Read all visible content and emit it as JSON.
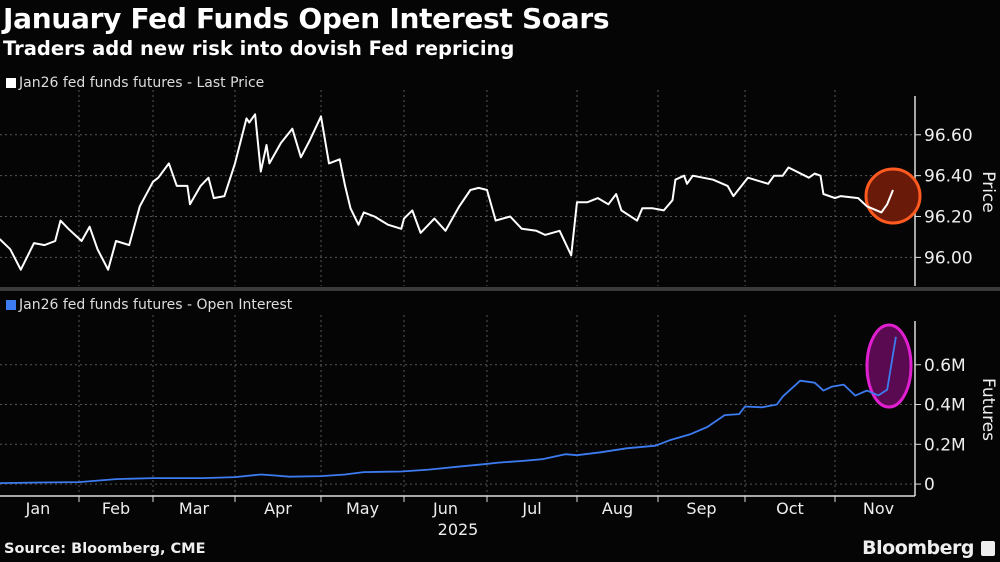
{
  "title": "January Fed Funds Open Interest Soars",
  "subtitle": "Traders add new risk into dovish Fed repricing",
  "source": "Source: Bloomberg, CME",
  "logo": "Bloomberg",
  "chart_data": [
    {
      "type": "line",
      "legend": "Jan26 fed funds futures - Last Price",
      "ylabel": "Price",
      "ylim": [
        95.86,
        96.78
      ],
      "yticks": [
        "96.00",
        "96.20",
        "96.40",
        "96.60"
      ],
      "grid": true,
      "color": "#ffffff",
      "highlight": {
        "shape": "circle",
        "color": "#ff5a1f",
        "around": "2025-11 final points"
      },
      "series": [
        {
          "name": "Jan26 fed funds futures - Last Price",
          "points": [
            [
              "2025-01-02",
              96.09
            ],
            [
              "2025-01-06",
              96.04
            ],
            [
              "2025-01-10",
              95.94
            ],
            [
              "2025-01-15",
              96.07
            ],
            [
              "2025-01-19",
              96.06
            ],
            [
              "2025-01-23",
              96.08
            ],
            [
              "2025-01-25",
              96.18
            ],
            [
              "2025-01-28",
              96.14
            ],
            [
              "2025-02-02",
              96.08
            ],
            [
              "2025-02-05",
              96.15
            ],
            [
              "2025-02-08",
              96.04
            ],
            [
              "2025-02-12",
              95.94
            ],
            [
              "2025-02-15",
              96.08
            ],
            [
              "2025-02-20",
              96.06
            ],
            [
              "2025-02-24",
              96.25
            ],
            [
              "2025-03-01",
              96.37
            ],
            [
              "2025-03-03",
              96.39
            ],
            [
              "2025-03-07",
              96.46
            ],
            [
              "2025-03-10",
              96.35
            ],
            [
              "2025-03-14",
              96.35
            ],
            [
              "2025-03-15",
              96.26
            ],
            [
              "2025-03-19",
              96.35
            ],
            [
              "2025-03-22",
              96.39
            ],
            [
              "2025-03-24",
              96.29
            ],
            [
              "2025-03-28",
              96.3
            ],
            [
              "2025-04-01",
              96.46
            ],
            [
              "2025-04-05",
              96.68
            ],
            [
              "2025-04-06",
              96.66
            ],
            [
              "2025-04-08",
              96.7
            ],
            [
              "2025-04-10",
              96.42
            ],
            [
              "2025-04-12",
              96.55
            ],
            [
              "2025-04-13",
              96.46
            ],
            [
              "2025-04-17",
              96.56
            ],
            [
              "2025-04-21",
              96.63
            ],
            [
              "2025-04-24",
              96.49
            ],
            [
              "2025-04-27",
              96.57
            ],
            [
              "2025-05-01",
              96.69
            ],
            [
              "2025-05-04",
              96.46
            ],
            [
              "2025-05-08",
              96.48
            ],
            [
              "2025-05-10",
              96.35
            ],
            [
              "2025-05-12",
              96.24
            ],
            [
              "2025-05-15",
              96.16
            ],
            [
              "2025-05-17",
              96.22
            ],
            [
              "2025-05-21",
              96.2
            ],
            [
              "2025-05-26",
              96.16
            ],
            [
              "2025-05-31",
              96.14
            ],
            [
              "2025-06-01",
              96.19
            ],
            [
              "2025-06-04",
              96.23
            ],
            [
              "2025-06-07",
              96.12
            ],
            [
              "2025-06-12",
              96.19
            ],
            [
              "2025-06-16",
              96.13
            ],
            [
              "2025-06-21",
              96.25
            ],
            [
              "2025-06-25",
              96.33
            ],
            [
              "2025-06-28",
              96.34
            ],
            [
              "2025-07-01",
              96.33
            ],
            [
              "2025-07-04",
              96.18
            ],
            [
              "2025-07-09",
              96.2
            ],
            [
              "2025-07-13",
              96.14
            ],
            [
              "2025-07-18",
              96.13
            ],
            [
              "2025-07-21",
              96.11
            ],
            [
              "2025-07-26",
              96.13
            ],
            [
              "2025-07-30",
              96.01
            ],
            [
              "2025-08-01",
              96.27
            ],
            [
              "2025-08-05",
              96.27
            ],
            [
              "2025-08-09",
              96.29
            ],
            [
              "2025-08-13",
              96.26
            ],
            [
              "2025-08-16",
              96.31
            ],
            [
              "2025-08-18",
              96.23
            ],
            [
              "2025-08-24",
              96.18
            ],
            [
              "2025-08-26",
              96.24
            ],
            [
              "2025-08-30",
              96.24
            ],
            [
              "2025-09-03",
              96.23
            ],
            [
              "2025-09-06",
              96.28
            ],
            [
              "2025-09-07",
              96.38
            ],
            [
              "2025-09-10",
              96.4
            ],
            [
              "2025-09-11",
              96.36
            ],
            [
              "2025-09-13",
              96.4
            ],
            [
              "2025-09-20",
              96.38
            ],
            [
              "2025-09-25",
              96.35
            ],
            [
              "2025-09-27",
              96.3
            ],
            [
              "2025-10-02",
              96.39
            ],
            [
              "2025-10-09",
              96.36
            ],
            [
              "2025-10-11",
              96.4
            ],
            [
              "2025-10-14",
              96.4
            ],
            [
              "2025-10-16",
              96.44
            ],
            [
              "2025-10-23",
              96.39
            ],
            [
              "2025-10-25",
              96.41
            ],
            [
              "2025-10-27",
              96.4
            ],
            [
              "2025-10-28",
              96.31
            ],
            [
              "2025-11-01",
              96.29
            ],
            [
              "2025-11-03",
              96.3
            ],
            [
              "2025-11-09",
              96.29
            ],
            [
              "2025-11-12",
              96.25
            ],
            [
              "2025-11-17",
              96.22
            ],
            [
              "2025-11-19",
              96.26
            ],
            [
              "2025-11-21",
              96.33
            ]
          ]
        }
      ]
    },
    {
      "type": "line",
      "legend": "Jan26 fed funds futures - Open Interest",
      "ylabel": "Futures",
      "ylim": [
        -0.06,
        0.81
      ],
      "yunit": "M",
      "yticks": [
        "0",
        "0.2M",
        "0.4M",
        "0.6M"
      ],
      "ytick_values": [
        0,
        0.2,
        0.4,
        0.6
      ],
      "grid": true,
      "color": "#3d7bf0",
      "highlight": {
        "shape": "ellipse",
        "color": "#e020d0",
        "around": "2025-11 final points"
      },
      "xticks": [
        "Jan",
        "Feb",
        "Mar",
        "Apr",
        "May",
        "Jun",
        "Jul",
        "Aug",
        "Sep",
        "Oct",
        "Nov"
      ],
      "xyear": "2025",
      "series": [
        {
          "name": "Jan26 fed funds futures - Open Interest",
          "points": [
            [
              "2025-01-02",
              0.005
            ],
            [
              "2025-01-17",
              0.008
            ],
            [
              "2025-02-01",
              0.01
            ],
            [
              "2025-02-15",
              0.025
            ],
            [
              "2025-03-01",
              0.03
            ],
            [
              "2025-03-20",
              0.03
            ],
            [
              "2025-04-01",
              0.035
            ],
            [
              "2025-04-10",
              0.048
            ],
            [
              "2025-04-15",
              0.043
            ],
            [
              "2025-04-20",
              0.037
            ],
            [
              "2025-05-01",
              0.04
            ],
            [
              "2025-05-10",
              0.048
            ],
            [
              "2025-05-17",
              0.06
            ],
            [
              "2025-05-31",
              0.063
            ],
            [
              "2025-06-10",
              0.073
            ],
            [
              "2025-06-20",
              0.087
            ],
            [
              "2025-06-30",
              0.1
            ],
            [
              "2025-07-05",
              0.108
            ],
            [
              "2025-07-13",
              0.116
            ],
            [
              "2025-07-20",
              0.125
            ],
            [
              "2025-07-28",
              0.15
            ],
            [
              "2025-08-01",
              0.145
            ],
            [
              "2025-08-10",
              0.16
            ],
            [
              "2025-08-20",
              0.18
            ],
            [
              "2025-08-31",
              0.193
            ],
            [
              "2025-09-05",
              0.22
            ],
            [
              "2025-09-12",
              0.25
            ],
            [
              "2025-09-18",
              0.287
            ],
            [
              "2025-09-24",
              0.347
            ],
            [
              "2025-09-29",
              0.352
            ],
            [
              "2025-10-01",
              0.39
            ],
            [
              "2025-10-07",
              0.386
            ],
            [
              "2025-10-12",
              0.4
            ],
            [
              "2025-10-14",
              0.44
            ],
            [
              "2025-10-20",
              0.52
            ],
            [
              "2025-10-25",
              0.51
            ],
            [
              "2025-10-28",
              0.47
            ],
            [
              "2025-10-31",
              0.49
            ],
            [
              "2025-11-04",
              0.5
            ],
            [
              "2025-11-08",
              0.445
            ],
            [
              "2025-11-12",
              0.47
            ],
            [
              "2025-11-16",
              0.446
            ],
            [
              "2025-11-19",
              0.475
            ],
            [
              "2025-11-22",
              0.74
            ]
          ]
        }
      ]
    }
  ]
}
